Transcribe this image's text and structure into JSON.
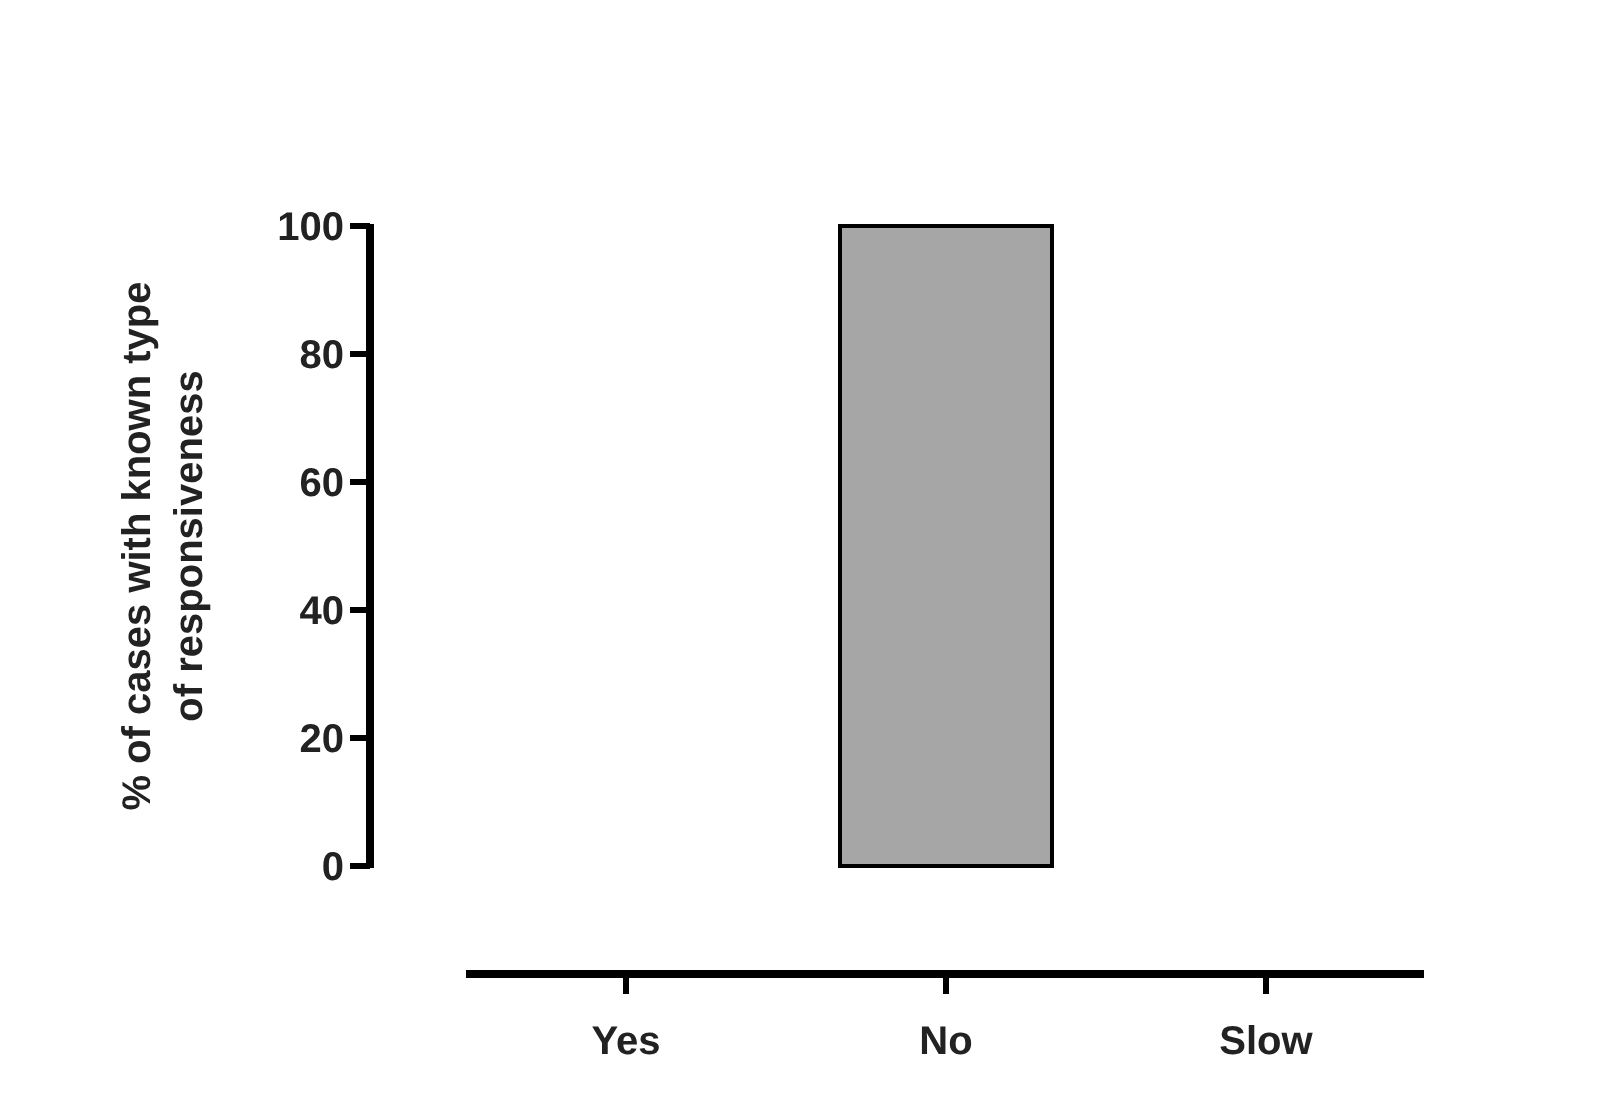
{
  "chart_data": {
    "type": "bar",
    "ylabel": "% of cases with  known type\nof responsiveness",
    "categories": [
      "Yes",
      "No",
      "Slow"
    ],
    "values": [
      0,
      100,
      0
    ],
    "color": "#a6a6a6",
    "ylim": [
      0,
      100
    ],
    "yticks": [
      0,
      20,
      40,
      60,
      80,
      100
    ],
    "grid": false
  }
}
